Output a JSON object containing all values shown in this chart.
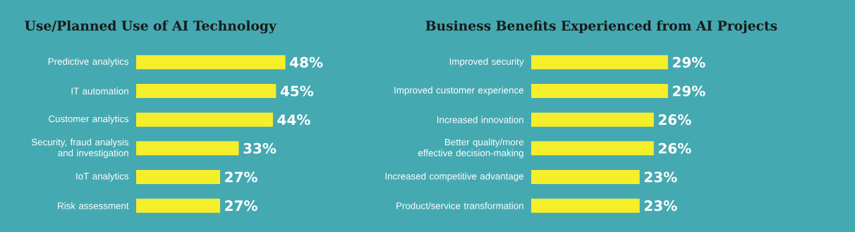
{
  "chart_data": [
    {
      "type": "bar",
      "orientation": "horizontal",
      "title": "Use/Planned Use of AI Technology",
      "categories": [
        "Predictive analytics",
        "IT automation",
        "Customer analytics",
        "Security, fraud analysis and investigation",
        "IoT analytics",
        "Risk assessment"
      ],
      "values": [
        48,
        45,
        44,
        33,
        27,
        27
      ],
      "value_labels": [
        "48%",
        "45%",
        "44%",
        "33%",
        "27%",
        "27%"
      ],
      "color": "#f5ee2b"
    },
    {
      "type": "bar",
      "orientation": "horizontal",
      "title": "Business Benefits Experienced from AI Projects",
      "categories": [
        "Improved security",
        "Improved customer experience",
        "Increased innovation",
        "Better quality/more effective decision-making",
        "Increased competitive advantage",
        "Product/service transformation"
      ],
      "values": [
        29,
        29,
        26,
        26,
        23,
        23
      ],
      "value_labels": [
        "29%",
        "29%",
        "26%",
        "26%",
        "23%",
        "23%"
      ],
      "color": "#f5ee2b"
    }
  ]
}
